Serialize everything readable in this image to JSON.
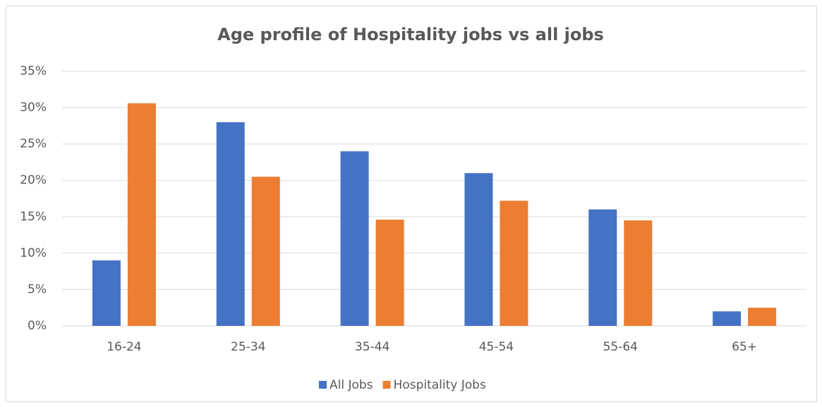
{
  "chart_data": {
    "type": "bar",
    "title": "Age profile of Hospitality jobs vs all jobs",
    "categories": [
      "16-24",
      "25-34",
      "35-44",
      "45-54",
      "55-64",
      "65+"
    ],
    "series": [
      {
        "name": "All Jobs",
        "color": "#4472c4",
        "values": [
          9.0,
          28.0,
          24.0,
          21.0,
          16.0,
          2.0
        ]
      },
      {
        "name": "Hospitality Jobs",
        "color": "#ed7d31",
        "values": [
          30.6,
          20.5,
          14.6,
          17.2,
          14.5,
          2.5
        ]
      }
    ],
    "ylim": [
      0,
      35
    ],
    "yticks": [
      {
        "value": 0,
        "label": "0%"
      },
      {
        "value": 5,
        "label": "5%"
      },
      {
        "value": 10,
        "label": "10%"
      },
      {
        "value": 15,
        "label": "15%"
      },
      {
        "value": 20,
        "label": "20%"
      },
      {
        "value": 25,
        "label": "25%"
      },
      {
        "value": 30,
        "label": "30%"
      },
      {
        "value": 35,
        "label": "35%"
      }
    ],
    "grid": true,
    "legend": "bottom"
  }
}
